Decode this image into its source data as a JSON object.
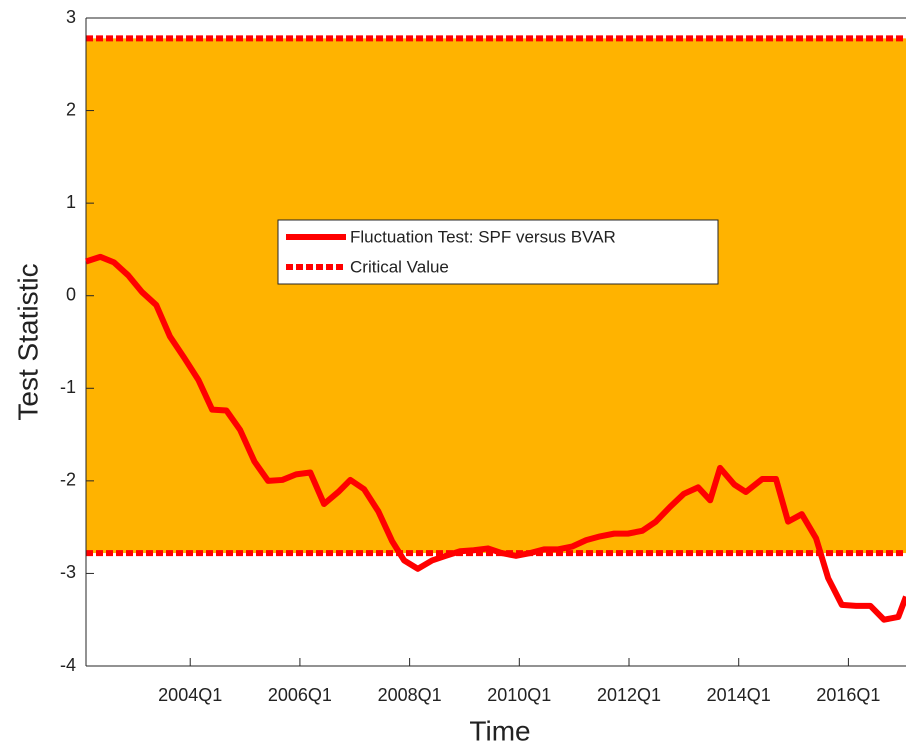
{
  "chart_data": {
    "type": "line",
    "x_label": "Time",
    "y_label": "Test Statistic",
    "xlim": [
      2002.1,
      2017.05
    ],
    "ylim": [
      -4,
      3
    ],
    "xticks": [
      {
        "value": 2004,
        "label": "2004Q1"
      },
      {
        "value": 2006,
        "label": "2006Q1"
      },
      {
        "value": 2008,
        "label": "2008Q1"
      },
      {
        "value": 2010,
        "label": "2010Q1"
      },
      {
        "value": 2012,
        "label": "2012Q1"
      },
      {
        "value": 2014,
        "label": "2014Q1"
      },
      {
        "value": 2016,
        "label": "2016Q1"
      }
    ],
    "yticks": [
      -4,
      -3,
      -2,
      -1,
      0,
      1,
      2,
      3
    ],
    "x": [
      2002.1,
      2002.36,
      2002.61,
      2002.87,
      2003.12,
      2003.38,
      2003.63,
      2003.89,
      2004.15,
      2004.4,
      2004.66,
      2004.91,
      2005.17,
      2005.42,
      2005.68,
      2005.93,
      2006.19,
      2006.44,
      2006.7,
      2006.92,
      2007.17,
      2007.43,
      2007.68,
      2007.9,
      2008.15,
      2008.41,
      2008.66,
      2008.92,
      2009.17,
      2009.43,
      2009.68,
      2009.94,
      2010.2,
      2010.45,
      2010.71,
      2010.96,
      2011.22,
      2011.47,
      2011.73,
      2011.98,
      2012.24,
      2012.49,
      2012.75,
      2013.0,
      2013.26,
      2013.48,
      2013.66,
      2013.92,
      2014.13,
      2014.43,
      2014.68,
      2014.9,
      2015.15,
      2015.41,
      2015.63,
      2015.88,
      2016.14,
      2016.4,
      2016.65,
      2016.91,
      2017.05
    ],
    "series": [
      {
        "name": "Fluctuation Test: SPF versus BVAR",
        "color": "#ff0000",
        "values": [
          0.37,
          0.42,
          0.36,
          0.22,
          0.04,
          -0.1,
          -0.44,
          -0.67,
          -0.91,
          -1.23,
          -1.24,
          -1.45,
          -1.79,
          -2.0,
          -1.99,
          -1.93,
          -1.91,
          -2.25,
          -2.12,
          -1.99,
          -2.09,
          -2.33,
          -2.65,
          -2.86,
          -2.95,
          -2.86,
          -2.81,
          -2.76,
          -2.75,
          -2.73,
          -2.78,
          -2.81,
          -2.78,
          -2.74,
          -2.74,
          -2.71,
          -2.64,
          -2.6,
          -2.57,
          -2.57,
          -2.54,
          -2.44,
          -2.28,
          -2.14,
          -2.07,
          -2.21,
          -1.86,
          -2.04,
          -2.12,
          -1.98,
          -1.98,
          -2.44,
          -2.36,
          -2.62,
          -3.05,
          -3.34,
          -3.35,
          -3.35,
          -3.5,
          -3.47,
          -3.25
        ]
      }
    ],
    "critical": {
      "name": "Critical Value",
      "color": "#ff0000",
      "fill": "#ffb300",
      "values": [
        -2.78,
        2.78
      ]
    }
  }
}
